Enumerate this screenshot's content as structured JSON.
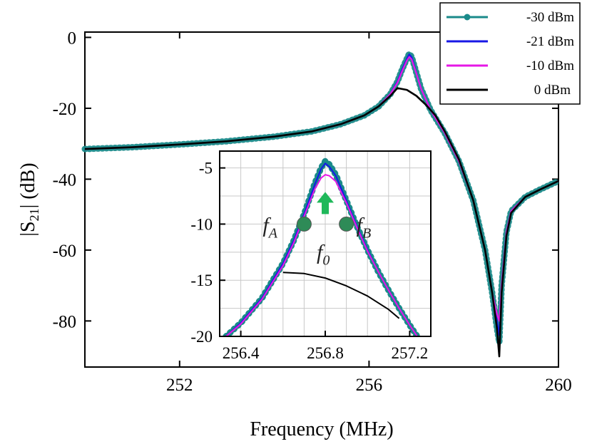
{
  "chart_data": [
    {
      "type": "line",
      "role": "main",
      "xlabel": "Frequency (MHz)",
      "ylabel_prefix": "|S",
      "ylabel_sub": "21",
      "ylabel_suffix": "| (dB)",
      "xlim": [
        250,
        260
      ],
      "ylim": [
        -93,
        1.5
      ],
      "xticks": [
        252,
        256,
        260
      ],
      "yticks": [
        0,
        -20,
        -40,
        -60,
        -80
      ],
      "xtick_labels": [
        "252",
        "256",
        "260"
      ],
      "ytick_labels": [
        "0",
        "-20",
        "-40",
        "-60",
        "-80"
      ],
      "grid": false,
      "legend_position": "top-right",
      "series": [
        {
          "name": "-30 dBm",
          "color": "#1a8a8a",
          "text_color": "#1f7a1f",
          "marker": "circle",
          "x": [
            250.0,
            251.0,
            252.0,
            253.0,
            254.0,
            254.8,
            255.4,
            255.9,
            256.2,
            256.45,
            256.6,
            256.7,
            256.8,
            256.85,
            256.9,
            257.0,
            257.1,
            257.3,
            257.6,
            257.9,
            258.2,
            258.45,
            258.6,
            258.7,
            258.75,
            258.8,
            258.9,
            259.0,
            259.3,
            259.6,
            260.0
          ],
          "y": [
            -31.5,
            -31.0,
            -30.2,
            -29.3,
            -28.0,
            -26.5,
            -24.5,
            -22.0,
            -19.5,
            -16.0,
            -12.5,
            -9.0,
            -6.0,
            -4.6,
            -5.5,
            -10.0,
            -14.5,
            -20.5,
            -27.0,
            -35.0,
            -46.0,
            -60.0,
            -72.0,
            -82.0,
            -86.0,
            -70.0,
            -55.0,
            -49.0,
            -45.0,
            -43.0,
            -40.5
          ]
        },
        {
          "name": "-21 dBm",
          "color": "#1717e6",
          "text_color": "#1717e6",
          "marker": "none",
          "x": [
            250.0,
            251.0,
            252.0,
            253.0,
            254.0,
            254.8,
            255.4,
            255.9,
            256.2,
            256.45,
            256.6,
            256.7,
            256.8,
            256.85,
            256.9,
            257.0,
            257.1,
            257.3,
            257.6,
            257.9,
            258.2,
            258.45,
            258.6,
            258.7,
            258.75,
            258.8,
            258.9,
            259.0,
            259.3,
            259.6,
            260.0
          ],
          "y": [
            -31.5,
            -31.0,
            -30.2,
            -29.3,
            -28.0,
            -26.5,
            -24.5,
            -22.0,
            -19.5,
            -16.0,
            -12.5,
            -9.0,
            -6.0,
            -4.8,
            -5.6,
            -10.0,
            -14.5,
            -20.5,
            -27.0,
            -35.0,
            -46.0,
            -60.0,
            -72.0,
            -80.0,
            -84.0,
            -70.0,
            -55.0,
            -49.0,
            -45.0,
            -43.0,
            -40.5
          ]
        },
        {
          "name": "-10 dBm",
          "color": "#e617e6",
          "text_color": "#e617e6",
          "marker": "none",
          "x": [
            250.0,
            251.0,
            252.0,
            253.0,
            254.0,
            254.8,
            255.4,
            255.9,
            256.2,
            256.45,
            256.6,
            256.7,
            256.8,
            256.85,
            256.9,
            257.0,
            257.1,
            257.3,
            257.6,
            257.9,
            258.2,
            258.45,
            258.6,
            258.7,
            258.75,
            258.8,
            258.9,
            259.0,
            259.3,
            259.6,
            260.0
          ],
          "y": [
            -31.5,
            -31.0,
            -30.2,
            -29.3,
            -28.0,
            -26.5,
            -24.5,
            -22.0,
            -19.5,
            -16.0,
            -12.8,
            -9.5,
            -6.5,
            -5.5,
            -6.2,
            -10.2,
            -14.5,
            -20.5,
            -27.0,
            -35.0,
            -46.0,
            -60.0,
            -72.0,
            -78.0,
            -80.0,
            -70.0,
            -55.0,
            -49.0,
            -45.0,
            -43.0,
            -40.5
          ]
        },
        {
          "name": "0 dBm",
          "color": "#000000",
          "text_color": "#000000",
          "marker": "none",
          "x": [
            250.0,
            251.0,
            252.0,
            253.0,
            254.0,
            254.8,
            255.4,
            255.9,
            256.2,
            256.45,
            256.6,
            256.8,
            257.0,
            257.2,
            257.4,
            257.6,
            257.9,
            258.2,
            258.45,
            258.6,
            258.7,
            258.75,
            258.8,
            258.9,
            259.0,
            259.3,
            259.6,
            260.0
          ],
          "y": [
            -31.5,
            -31.0,
            -30.2,
            -29.3,
            -28.0,
            -26.5,
            -24.5,
            -22.0,
            -19.5,
            -16.5,
            -14.3,
            -14.8,
            -16.5,
            -19.0,
            -22.0,
            -26.5,
            -34.5,
            -46.0,
            -60.0,
            -72.0,
            -82.0,
            -90.0,
            -72.0,
            -56.0,
            -49.5,
            -45.0,
            -43.0,
            -40.5
          ]
        }
      ]
    },
    {
      "type": "line",
      "role": "inset",
      "xlim": [
        256.3,
        257.3
      ],
      "ylim": [
        -20,
        -3.5
      ],
      "xticks": [
        256.4,
        256.8,
        257.2
      ],
      "yticks": [
        -5,
        -10,
        -15,
        -20
      ],
      "xtick_labels": [
        "256.4",
        "256.8",
        "257.2"
      ],
      "ytick_labels": [
        "-5",
        "-10",
        "-15",
        "-20"
      ],
      "grid": true,
      "x_grid": [
        256.3,
        256.4,
        256.5,
        256.6,
        256.7,
        256.8,
        256.9,
        257.0,
        257.1,
        257.2,
        257.3
      ],
      "y_grid": [
        -5,
        -7.5,
        -10,
        -12.5,
        -15,
        -17.5
      ],
      "series": [
        {
          "name": "-30 dBm",
          "color": "#1a8a8a",
          "marker": "circle",
          "x": [
            256.33,
            256.4,
            256.5,
            256.6,
            256.65,
            256.7,
            256.75,
            256.78,
            256.8,
            256.82,
            256.85,
            256.9,
            256.95,
            257.0,
            257.05,
            257.1,
            257.15,
            257.2,
            257.25,
            257.3
          ],
          "y": [
            -20.0,
            -18.8,
            -16.6,
            -13.5,
            -11.5,
            -9.1,
            -6.4,
            -5.0,
            -4.4,
            -4.7,
            -5.6,
            -7.9,
            -10.2,
            -12.3,
            -14.2,
            -15.9,
            -17.5,
            -19.0,
            -20.4,
            -21.6
          ]
        },
        {
          "name": "-21 dBm",
          "color": "#1717e6",
          "marker": "none",
          "x": [
            256.33,
            256.4,
            256.5,
            256.6,
            256.65,
            256.7,
            256.75,
            256.78,
            256.8,
            256.82,
            256.85,
            256.9,
            256.95,
            257.0,
            257.05,
            257.1,
            257.15,
            257.2,
            257.25,
            257.3
          ],
          "y": [
            -20.0,
            -18.8,
            -16.6,
            -13.5,
            -11.5,
            -9.1,
            -6.5,
            -5.1,
            -4.6,
            -4.9,
            -5.7,
            -7.9,
            -10.2,
            -12.3,
            -14.2,
            -15.9,
            -17.5,
            -19.0,
            -20.4,
            -21.6
          ]
        },
        {
          "name": "-10 dBm",
          "color": "#e617e6",
          "marker": "none",
          "x": [
            256.33,
            256.4,
            256.5,
            256.6,
            256.65,
            256.7,
            256.75,
            256.78,
            256.8,
            256.82,
            256.85,
            256.9,
            256.95,
            257.0,
            257.05,
            257.1,
            257.15,
            257.2,
            257.25,
            257.3
          ],
          "y": [
            -20.0,
            -18.9,
            -16.7,
            -13.7,
            -11.7,
            -9.3,
            -6.9,
            -5.9,
            -5.6,
            -5.7,
            -6.2,
            -8.1,
            -10.3,
            -12.4,
            -14.2,
            -15.9,
            -17.5,
            -19.0,
            -20.4,
            -21.6
          ]
        },
        {
          "name": "0 dBm",
          "color": "#000000",
          "marker": "none",
          "x": [
            256.6,
            256.7,
            256.8,
            256.9,
            257.0,
            257.1,
            257.15
          ],
          "y": [
            -14.3,
            -14.4,
            -14.8,
            -15.5,
            -16.4,
            -17.6,
            -18.4
          ]
        }
      ],
      "annotations": {
        "fa": {
          "main": "f",
          "sub": "A",
          "x": 256.7,
          "y": -10.0,
          "color": "#2e8b57"
        },
        "fb": {
          "main": "f",
          "sub": "B",
          "x": 256.9,
          "y": -10.0,
          "color": "#2e8b57"
        },
        "f0": {
          "main": "f",
          "sub": "0",
          "x": 256.8,
          "y": -10.0
        },
        "arrow_color": "#1fb85a"
      }
    }
  ]
}
